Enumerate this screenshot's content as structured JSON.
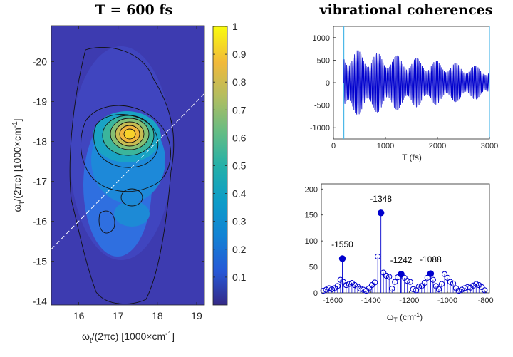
{
  "chart_data": [
    {
      "type": "heatmap",
      "title": "T = 600 fs",
      "xlabel": {
        "main": "ω",
        "sub": "t",
        "rest": "/(2πc)  [1000×cm",
        "sup": "-1",
        "end": "]"
      },
      "ylabel": {
        "main": "ω",
        "sub": "τ",
        "rest": "/(2πc)  [1000×cm",
        "sup": "-1",
        "end": "]"
      },
      "xlim": [
        15.3,
        19.2
      ],
      "ylim": [
        -20.9,
        -13.9
      ],
      "x_ticks": [
        16,
        17,
        18,
        19
      ],
      "y_ticks": [
        -20,
        -19,
        -18,
        -17,
        -16,
        -15,
        -14
      ],
      "colorbar": {
        "min": 0.0,
        "max": 1.0,
        "ticks": [
          "0.1",
          "0.2",
          "0.3",
          "0.4",
          "0.5",
          "0.6",
          "0.7",
          "0.8",
          "0.9",
          "1"
        ],
        "tick_values": [
          0.1,
          0.2,
          0.3,
          0.4,
          0.5,
          0.6,
          0.7,
          0.8,
          0.9,
          1.0
        ]
      },
      "peak": {
        "x": 17.35,
        "y": -18.15,
        "value": 1.0
      },
      "diagonal": "dashed white line where omega_tau equals minus omega_t"
    },
    {
      "type": "line",
      "title": "vibrational coherences",
      "xlabel": "T  (fs)",
      "ylabel": "",
      "xlim": [
        0,
        3000
      ],
      "ylim": [
        -1250,
        1250
      ],
      "x_ticks": [
        0,
        1000,
        2000,
        3000
      ],
      "y_ticks": [
        -1000,
        -500,
        0,
        500,
        1000
      ],
      "vertical_markers": [
        200,
        3000
      ],
      "oscillation": {
        "t_start": 200,
        "t_end": 3000,
        "amplitude_start": 800,
        "amplitude_end": 350,
        "period_fs": 25
      }
    },
    {
      "type": "stem",
      "xlabel": {
        "main": "ω",
        "sub": "T",
        "rest": " (cm",
        "sup": "-1",
        "end": ")"
      },
      "ylabel": "",
      "xlim": [
        -1660,
        -780
      ],
      "ylim": [
        0,
        210
      ],
      "x_ticks": [
        -1600,
        -1400,
        -1200,
        -1000,
        -800
      ],
      "y_ticks": [
        0,
        50,
        100,
        150,
        200
      ],
      "open_x": [
        -1650,
        -1635,
        -1620,
        -1605,
        -1590,
        -1575,
        -1560,
        -1545,
        -1530,
        -1515,
        -1500,
        -1485,
        -1470,
        -1455,
        -1440,
        -1425,
        -1410,
        -1395,
        -1380,
        -1365,
        -1335,
        -1320,
        -1305,
        -1290,
        -1275,
        -1260,
        -1245,
        -1225,
        -1210,
        -1195,
        -1180,
        -1165,
        -1150,
        -1135,
        -1120,
        -1105,
        -1075,
        -1060,
        -1045,
        -1030,
        -1015,
        -1000,
        -985,
        -970,
        -955,
        -940,
        -925,
        -910,
        -895,
        -880,
        -865,
        -850,
        -835,
        -820,
        -805
      ],
      "open_y": [
        4,
        6,
        9,
        7,
        9,
        13,
        25,
        21,
        15,
        17,
        19,
        15,
        12,
        8,
        6,
        4,
        9,
        15,
        20,
        70,
        39,
        33,
        31,
        8,
        21,
        30,
        36,
        29,
        23,
        21,
        7,
        5,
        12,
        13,
        19,
        29,
        25,
        13,
        7,
        17,
        36,
        29,
        21,
        18,
        9,
        4,
        6,
        9,
        11,
        10,
        14,
        17,
        15,
        11,
        5
      ],
      "filled": [
        {
          "x": -1550,
          "y": 66,
          "label": "-1550"
        },
        {
          "x": -1348,
          "y": 154,
          "label": "-1348"
        },
        {
          "x": -1242,
          "y": 36,
          "label": "-1242"
        },
        {
          "x": -1088,
          "y": 37,
          "label": "-1088"
        }
      ]
    }
  ]
}
